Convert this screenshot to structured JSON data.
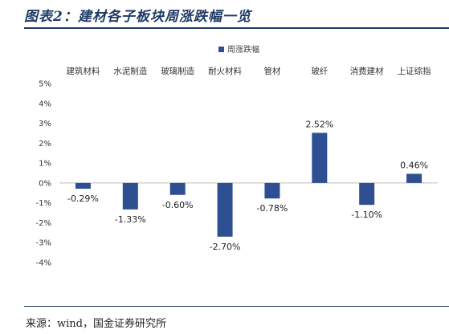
{
  "figure": {
    "title": "图表2：建材各子板块周涨跌幅一览",
    "source": "来源：wind，国金证券研究所"
  },
  "chart_data": {
    "type": "bar",
    "title": "",
    "xlabel": "",
    "ylabel": "",
    "categories": [
      "建筑材料",
      "水泥制造",
      "玻璃制造",
      "耐火材料",
      "管材",
      "玻纤",
      "消费建材",
      "上证综指"
    ],
    "series": [
      {
        "name": "周涨跌幅",
        "values": [
          -0.29,
          -1.33,
          -0.6,
          -2.7,
          -0.78,
          2.52,
          -1.1,
          0.46
        ],
        "labels": [
          "-0.29%",
          "-1.33%",
          "-0.60%",
          "-2.70%",
          "-0.78%",
          "2.52%",
          "-1.10%",
          "0.46%"
        ],
        "color": "#2f4f93"
      }
    ],
    "ylim": [
      -4,
      5
    ],
    "yticks": [
      5,
      4,
      3,
      2,
      1,
      0,
      -1,
      -2,
      -3,
      -4
    ],
    "ytick_labels": [
      "5%",
      "4%",
      "3%",
      "2%",
      "1%",
      "0%",
      "-1%",
      "-2%",
      "-3%",
      "-4%"
    ],
    "category_position": "top",
    "legend_position": "top-center",
    "grid": false
  }
}
